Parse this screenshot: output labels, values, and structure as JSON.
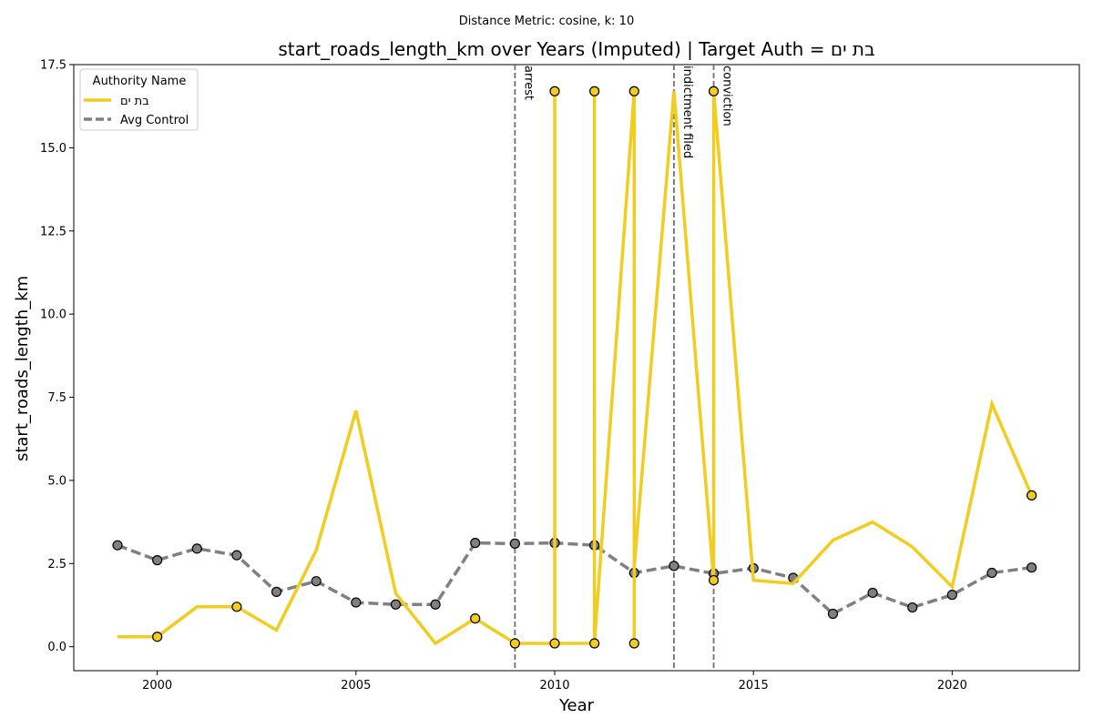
{
  "chart_data": {
    "type": "line",
    "suptitle": "Distance Metric: cosine, k: 10",
    "title": "start_roads_length_km over Years (Imputed) | Target Auth = בת ים",
    "xlabel": "Year",
    "ylabel": "start_roads_length_km",
    "xlim": [
      1997.9,
      2023.2
    ],
    "ylim": [
      -0.72,
      17.5
    ],
    "x_ticks": [
      2000,
      2005,
      2010,
      2015,
      2020
    ],
    "y_ticks": [
      0.0,
      2.5,
      5.0,
      7.5,
      10.0,
      12.5,
      15.0,
      17.5
    ],
    "y_tick_labels": [
      "0.0",
      "2.5",
      "5.0",
      "7.5",
      "10.0",
      "12.5",
      "15.0",
      "17.5"
    ],
    "grid": false,
    "legend": {
      "title": "Authority Name",
      "placement": "top-left"
    },
    "series": [
      {
        "name": "בת ים",
        "color": "#f2cc1f",
        "style": "solid",
        "points": [
          [
            1999,
            0.3
          ],
          [
            2000,
            0.3
          ],
          [
            2001,
            1.2
          ],
          [
            2002,
            1.2
          ],
          [
            2003,
            0.5
          ],
          [
            2004,
            2.9
          ],
          [
            2005,
            7.1
          ],
          [
            2006,
            1.6
          ],
          [
            2007,
            0.1
          ],
          [
            2008,
            0.85
          ],
          [
            2009,
            0.1
          ],
          [
            2010,
            0.1
          ],
          [
            2010,
            16.7
          ],
          [
            2010,
            0.1
          ],
          [
            2011,
            0.1
          ],
          [
            2011,
            16.7
          ],
          [
            2011,
            0.1
          ],
          [
            2012,
            16.7
          ],
          [
            2012,
            0.1
          ],
          [
            2012,
            2.4
          ],
          [
            2013,
            16.7
          ],
          [
            2014,
            2.0
          ],
          [
            2014,
            16.7
          ],
          [
            2015,
            2.0
          ],
          [
            2016,
            1.9
          ],
          [
            2017,
            3.2
          ],
          [
            2018,
            3.75
          ],
          [
            2019,
            3.0
          ],
          [
            2020,
            1.8
          ],
          [
            2021,
            7.3
          ],
          [
            2022,
            4.55
          ]
        ],
        "markers": [
          [
            2000,
            0.3
          ],
          [
            2002,
            1.2
          ],
          [
            2008,
            0.85
          ],
          [
            2009,
            0.1
          ],
          [
            2010,
            0.1
          ],
          [
            2010,
            16.7
          ],
          [
            2011,
            0.1
          ],
          [
            2011,
            16.7
          ],
          [
            2012,
            16.7
          ],
          [
            2012,
            0.1
          ],
          [
            2014,
            16.7
          ],
          [
            2014,
            2.0
          ],
          [
            2022,
            4.55
          ]
        ],
        "marker_color": "#f2cc1f"
      },
      {
        "name": "Avg Control",
        "color": "#808080",
        "style": "dashed",
        "points": [
          [
            1999,
            3.05
          ],
          [
            2000,
            2.6
          ],
          [
            2001,
            2.95
          ],
          [
            2002,
            2.75
          ],
          [
            2003,
            1.65
          ],
          [
            2004,
            1.97
          ],
          [
            2005,
            1.33
          ],
          [
            2006,
            1.27
          ],
          [
            2007,
            1.27
          ],
          [
            2008,
            3.12
          ],
          [
            2009,
            3.1
          ],
          [
            2010,
            3.12
          ],
          [
            2011,
            3.05
          ],
          [
            2012,
            2.22
          ],
          [
            2013,
            2.43
          ],
          [
            2014,
            2.2
          ],
          [
            2015,
            2.36
          ],
          [
            2016,
            2.07
          ],
          [
            2017,
            0.99
          ],
          [
            2018,
            1.62
          ],
          [
            2019,
            1.18
          ],
          [
            2020,
            1.56
          ],
          [
            2021,
            2.22
          ],
          [
            2022,
            2.38
          ]
        ],
        "markers": [
          [
            1999,
            3.05
          ],
          [
            2000,
            2.6
          ],
          [
            2001,
            2.95
          ],
          [
            2002,
            2.75
          ],
          [
            2003,
            1.65
          ],
          [
            2004,
            1.97
          ],
          [
            2005,
            1.33
          ],
          [
            2006,
            1.27
          ],
          [
            2007,
            1.27
          ],
          [
            2008,
            3.12
          ],
          [
            2009,
            3.1
          ],
          [
            2010,
            3.12
          ],
          [
            2011,
            3.05
          ],
          [
            2012,
            2.22
          ],
          [
            2013,
            2.43
          ],
          [
            2014,
            2.2
          ],
          [
            2015,
            2.36
          ],
          [
            2016,
            2.07
          ],
          [
            2017,
            0.99
          ],
          [
            2018,
            1.62
          ],
          [
            2019,
            1.18
          ],
          [
            2020,
            1.56
          ],
          [
            2021,
            2.22
          ],
          [
            2022,
            2.38
          ]
        ],
        "marker_color": "#808080"
      }
    ],
    "events": [
      {
        "x": 2009,
        "label": "arrest"
      },
      {
        "x": 2013,
        "label": "indictment filed"
      },
      {
        "x": 2014,
        "label": "conviction"
      }
    ]
  }
}
